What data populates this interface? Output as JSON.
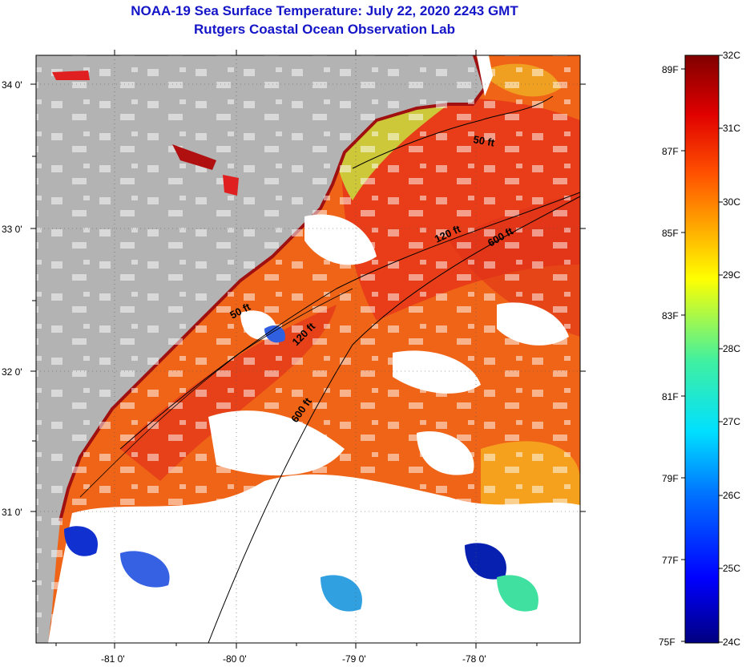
{
  "title_line1": "NOAA-19 Sea Surface Temperature:  July 22, 2020 2243 GMT",
  "title_line2": "Rutgers Coastal Ocean Observation Lab",
  "map": {
    "lon_labels": [
      "-81 0'",
      "-80 0'",
      "-79 0'",
      "-78 0'"
    ],
    "lat_labels": [
      "34 0'",
      "33 0'",
      "32 0'",
      "31 0'"
    ],
    "contour_labels": [
      "50 ft",
      "120 ft",
      "600 ft",
      "50 ft",
      "120 ft",
      "600 ft"
    ],
    "colors": {
      "land": "#b3b3b3",
      "cloud": "#ffffff",
      "warm": "#f06018",
      "hot": "#e22a10"
    }
  },
  "colorbar": {
    "celsius": [
      "32C",
      "31C",
      "30C",
      "29C",
      "28C",
      "27C",
      "26C",
      "25C",
      "24C"
    ],
    "fahrenheit": [
      "89F",
      "87F",
      "85F",
      "83F",
      "81F",
      "79F",
      "77F",
      "75F"
    ]
  }
}
